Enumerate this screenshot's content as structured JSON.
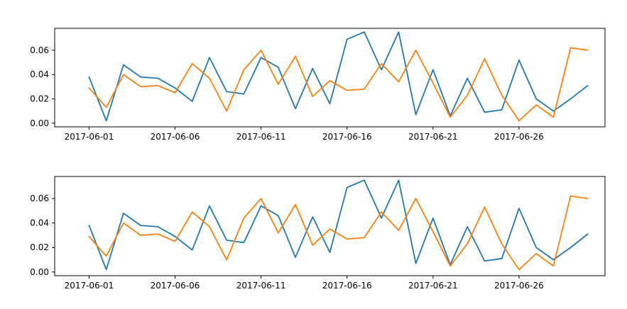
{
  "chart_data": [
    {
      "type": "line",
      "title": "",
      "xlabel": "",
      "ylabel": "",
      "x_dates": [
        "2017-06-01",
        "2017-06-02",
        "2017-06-03",
        "2017-06-04",
        "2017-06-05",
        "2017-06-06",
        "2017-06-07",
        "2017-06-08",
        "2017-06-09",
        "2017-06-10",
        "2017-06-11",
        "2017-06-12",
        "2017-06-13",
        "2017-06-14",
        "2017-06-15",
        "2017-06-16",
        "2017-06-17",
        "2017-06-18",
        "2017-06-19",
        "2017-06-20",
        "2017-06-21",
        "2017-06-22",
        "2017-06-23",
        "2017-06-24",
        "2017-06-25",
        "2017-06-26",
        "2017-06-27",
        "2017-06-28",
        "2017-06-29",
        "2017-06-30"
      ],
      "xlim": [
        "2017-05-30",
        "2017-07-01"
      ],
      "xticks": [
        "2017-06-01",
        "2017-06-06",
        "2017-06-11",
        "2017-06-16",
        "2017-06-21",
        "2017-06-26"
      ],
      "ylim": [
        -0.003,
        0.078
      ],
      "yticks": [
        "0.00",
        "0.02",
        "0.04",
        "0.06"
      ],
      "grid": false,
      "series": [
        {
          "color": "#1f77b4",
          "values": [
            0.038,
            0.002,
            0.048,
            0.038,
            0.037,
            0.029,
            0.018,
            0.054,
            0.026,
            0.024,
            0.054,
            0.046,
            0.012,
            0.045,
            0.016,
            0.069,
            0.075,
            0.044,
            0.075,
            0.007,
            0.044,
            0.006,
            0.037,
            0.009,
            0.011,
            0.052,
            0.02,
            0.01,
            0.02,
            0.031
          ]
        },
        {
          "color": "#ff7f0e",
          "values": [
            0.029,
            0.013,
            0.04,
            0.03,
            0.031,
            0.025,
            0.049,
            0.037,
            0.01,
            0.044,
            0.06,
            0.032,
            0.055,
            0.022,
            0.035,
            0.027,
            0.028,
            0.049,
            0.034,
            0.06,
            0.033,
            0.005,
            0.023,
            0.053,
            0.023,
            0.002,
            0.015,
            0.005,
            0.062,
            0.06
          ]
        }
      ]
    },
    {
      "type": "line",
      "title": "",
      "xlabel": "",
      "ylabel": "",
      "x_dates": [
        "2017-06-01",
        "2017-06-02",
        "2017-06-03",
        "2017-06-04",
        "2017-06-05",
        "2017-06-06",
        "2017-06-07",
        "2017-06-08",
        "2017-06-09",
        "2017-06-10",
        "2017-06-11",
        "2017-06-12",
        "2017-06-13",
        "2017-06-14",
        "2017-06-15",
        "2017-06-16",
        "2017-06-17",
        "2017-06-18",
        "2017-06-19",
        "2017-06-20",
        "2017-06-21",
        "2017-06-22",
        "2017-06-23",
        "2017-06-24",
        "2017-06-25",
        "2017-06-26",
        "2017-06-27",
        "2017-06-28",
        "2017-06-29",
        "2017-06-30"
      ],
      "xlim": [
        "2017-05-30",
        "2017-07-01"
      ],
      "xticks": [
        "2017-06-01",
        "2017-06-06",
        "2017-06-11",
        "2017-06-16",
        "2017-06-21",
        "2017-06-26"
      ],
      "ylim": [
        -0.003,
        0.078
      ],
      "yticks": [
        "0.00",
        "0.02",
        "0.04",
        "0.06"
      ],
      "grid": false,
      "series": [
        {
          "color": "#1f77b4",
          "values": [
            0.038,
            0.002,
            0.048,
            0.038,
            0.037,
            0.029,
            0.018,
            0.054,
            0.026,
            0.024,
            0.054,
            0.046,
            0.012,
            0.045,
            0.016,
            0.069,
            0.075,
            0.044,
            0.075,
            0.007,
            0.044,
            0.006,
            0.037,
            0.009,
            0.011,
            0.052,
            0.02,
            0.01,
            0.02,
            0.031
          ]
        },
        {
          "color": "#ff7f0e",
          "values": [
            0.029,
            0.013,
            0.04,
            0.03,
            0.031,
            0.025,
            0.049,
            0.037,
            0.01,
            0.044,
            0.06,
            0.032,
            0.055,
            0.022,
            0.035,
            0.027,
            0.028,
            0.049,
            0.034,
            0.06,
            0.033,
            0.005,
            0.023,
            0.053,
            0.023,
            0.002,
            0.015,
            0.005,
            0.062,
            0.06
          ]
        }
      ]
    }
  ]
}
